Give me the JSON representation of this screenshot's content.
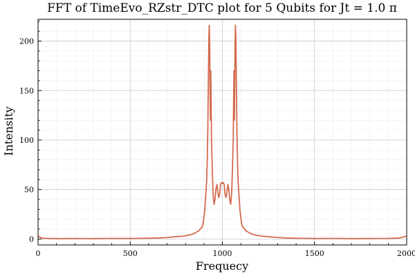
{
  "chart_data": {
    "type": "line",
    "title": "FFT of TimeEvo_RZstr_DTC plot for 5 Qubits for Jt = 1.0 π",
    "xlabel": "Frequecy",
    "ylabel": "Intensity",
    "xlim": [
      0,
      2000
    ],
    "ylim": [
      -6,
      222
    ],
    "x_ticks": [
      0,
      500,
      1000,
      1500,
      2000
    ],
    "x_tick_labels": [
      "0",
      "500",
      "1000",
      "1500",
      "2000"
    ],
    "y_ticks": [
      0,
      50,
      100,
      150,
      200
    ],
    "y_tick_labels": [
      "0",
      "50",
      "100",
      "150",
      "200"
    ],
    "grid": true,
    "minor_grid": true,
    "legend": "none",
    "series": [
      {
        "color": "#d46a4e",
        "points": [
          [
            0,
            3
          ],
          [
            5,
            2.5
          ],
          [
            10,
            2
          ],
          [
            20,
            1
          ],
          [
            40,
            0.6
          ],
          [
            100,
            0.4
          ],
          [
            200,
            0.5
          ],
          [
            300,
            0.4
          ],
          [
            400,
            0.6
          ],
          [
            500,
            0.5
          ],
          [
            600,
            0.8
          ],
          [
            650,
            1.0
          ],
          [
            700,
            1.5
          ],
          [
            730,
            2
          ],
          [
            760,
            2.5
          ],
          [
            790,
            3
          ],
          [
            820,
            4
          ],
          [
            840,
            5
          ],
          [
            860,
            7
          ],
          [
            870,
            8
          ],
          [
            880,
            10
          ],
          [
            890,
            12
          ],
          [
            895,
            15
          ],
          [
            900,
            22
          ],
          [
            905,
            30
          ],
          [
            910,
            45
          ],
          [
            915,
            60
          ],
          [
            918,
            80
          ],
          [
            921,
            110
          ],
          [
            924,
            160
          ],
          [
            927,
            205
          ],
          [
            929,
            216
          ],
          [
            931,
            200
          ],
          [
            933,
            150
          ],
          [
            935,
            120
          ],
          [
            937,
            170
          ],
          [
            939,
            140
          ],
          [
            941,
            100
          ],
          [
            944,
            80
          ],
          [
            947,
            60
          ],
          [
            950,
            45
          ],
          [
            955,
            35
          ],
          [
            960,
            40
          ],
          [
            965,
            50
          ],
          [
            970,
            55
          ],
          [
            975,
            48
          ],
          [
            980,
            42
          ],
          [
            985,
            45
          ],
          [
            990,
            55
          ],
          [
            995,
            57
          ],
          [
            1000,
            56
          ],
          [
            1005,
            57
          ],
          [
            1010,
            55
          ],
          [
            1015,
            45
          ],
          [
            1020,
            42
          ],
          [
            1025,
            48
          ],
          [
            1030,
            55
          ],
          [
            1035,
            50
          ],
          [
            1040,
            40
          ],
          [
            1045,
            35
          ],
          [
            1050,
            45
          ],
          [
            1053,
            60
          ],
          [
            1056,
            80
          ],
          [
            1059,
            100
          ],
          [
            1061,
            140
          ],
          [
            1063,
            170
          ],
          [
            1065,
            120
          ],
          [
            1067,
            150
          ],
          [
            1069,
            200
          ],
          [
            1071,
            216
          ],
          [
            1073,
            205
          ],
          [
            1076,
            160
          ],
          [
            1079,
            110
          ],
          [
            1082,
            80
          ],
          [
            1085,
            60
          ],
          [
            1090,
            45
          ],
          [
            1095,
            30
          ],
          [
            1100,
            22
          ],
          [
            1105,
            15
          ],
          [
            1110,
            12
          ],
          [
            1120,
            10
          ],
          [
            1130,
            8
          ],
          [
            1140,
            7
          ],
          [
            1160,
            5
          ],
          [
            1180,
            4
          ],
          [
            1210,
            3
          ],
          [
            1240,
            2.5
          ],
          [
            1270,
            2
          ],
          [
            1300,
            1.5
          ],
          [
            1350,
            1.0
          ],
          [
            1400,
            0.8
          ],
          [
            1500,
            0.5
          ],
          [
            1600,
            0.6
          ],
          [
            1700,
            0.4
          ],
          [
            1800,
            0.5
          ],
          [
            1900,
            0.6
          ],
          [
            1960,
            1
          ],
          [
            1980,
            2
          ],
          [
            1990,
            2.5
          ],
          [
            2000,
            3
          ]
        ]
      }
    ]
  }
}
